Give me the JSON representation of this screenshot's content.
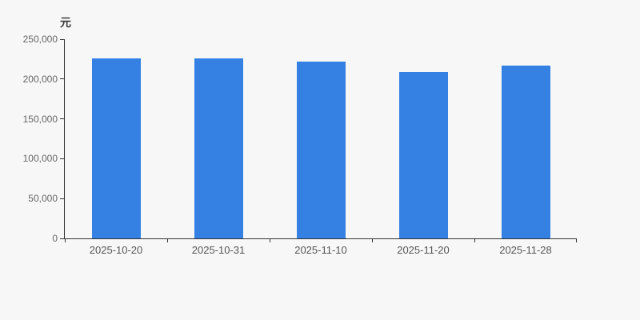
{
  "page": {
    "background_color": "#f7f7f7"
  },
  "chart_data": {
    "type": "bar",
    "title": "",
    "unit_label": "元",
    "xlabel": "",
    "ylabel": "元",
    "categories": [
      "2025-10-20",
      "2025-10-31",
      "2025-11-10",
      "2025-11-20",
      "2025-11-28"
    ],
    "values": [
      225500,
      225500,
      222300,
      208700,
      216400
    ],
    "ylim": [
      0,
      250000
    ],
    "y_ticks": [
      0,
      50000,
      100000,
      150000,
      200000,
      250000
    ],
    "y_tick_labels": [
      "0",
      "50,000",
      "100,000",
      "150,000",
      "200,000",
      "250,000"
    ],
    "grid": false,
    "legend": false,
    "bar_color": "#3581e3",
    "axis_color": "#333333",
    "y_label_color": "#666666",
    "x_label_color": "#555555"
  }
}
